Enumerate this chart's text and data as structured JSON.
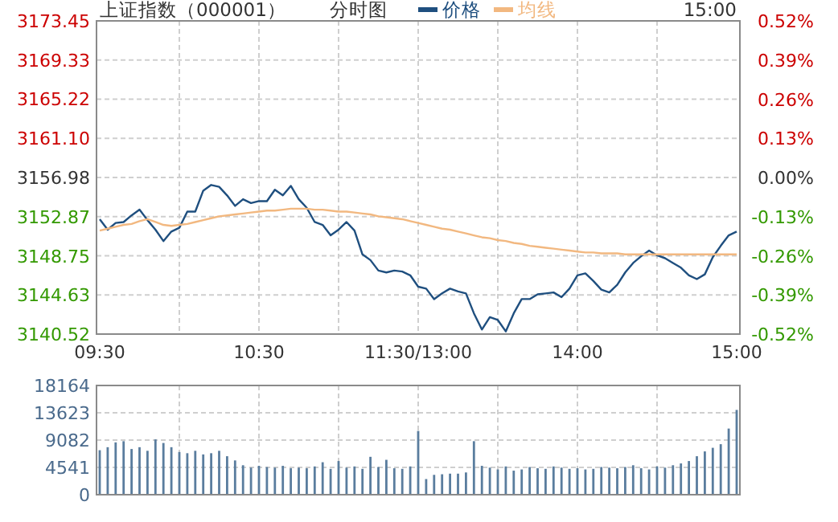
{
  "chart_data": [
    {
      "type": "line",
      "title": "上证指数（000001）",
      "subtitle": "分时图",
      "annotations": [
        "15:00"
      ],
      "legend": "top",
      "grid": true,
      "categories": [
        "09:30",
        null,
        null,
        null,
        null,
        null,
        null,
        null,
        null,
        null,
        null,
        null,
        null,
        null,
        null,
        null,
        null,
        null,
        null,
        null,
        "10:30",
        null,
        null,
        null,
        null,
        null,
        null,
        null,
        null,
        null,
        null,
        null,
        null,
        null,
        null,
        null,
        null,
        null,
        null,
        null,
        "11:30/13:00",
        null,
        null,
        null,
        null,
        null,
        null,
        null,
        null,
        null,
        null,
        null,
        null,
        null,
        null,
        null,
        null,
        null,
        null,
        null,
        "14:00",
        null,
        null,
        null,
        null,
        null,
        null,
        null,
        null,
        null,
        null,
        null,
        null,
        null,
        null,
        null,
        null,
        null,
        null,
        null,
        "15:00"
      ],
      "ylim": [
        3140.52,
        3173.45
      ],
      "yticks": [
        3140.52,
        3144.63,
        3148.75,
        3152.87,
        3156.98,
        {
          "value": 3161.1,
          "label": "3161.10"
        },
        3165.22,
        3169.33,
        3173.45
      ],
      "y2lim": [
        -0.52,
        0.52
      ],
      "y2ticks": [
        {
          "value": -0.52,
          "label": "-0.52%"
        },
        {
          "value": -0.39,
          "label": "-0.39%"
        },
        {
          "value": -0.26,
          "label": "-0.26%"
        },
        {
          "value": -0.13,
          "label": "-0.13%"
        },
        {
          "value": 0,
          "label": "0.00%"
        },
        {
          "value": 0.13,
          "label": "0.13%"
        },
        {
          "value": 0.26,
          "label": "0.26%"
        },
        {
          "value": 0.39,
          "label": "0.39%"
        },
        {
          "value": 0.52,
          "label": "0.52%"
        }
      ],
      "series": [
        {
          "name": "价格",
          "color": "#1f4f7f",
          "values": [
            3152.6,
            3151.5,
            3152.2,
            3152.3,
            3153.0,
            3153.6,
            3152.5,
            3151.5,
            3150.3,
            3151.3,
            3151.7,
            3153.4,
            3153.4,
            3155.6,
            3156.2,
            3156.0,
            3155.1,
            3154.0,
            3154.7,
            3154.3,
            3154.5,
            3154.5,
            3155.7,
            3155.1,
            3156.1,
            3154.7,
            3153.8,
            3152.3,
            3152.0,
            3150.9,
            3151.5,
            3152.3,
            3151.4,
            3148.9,
            3148.3,
            3147.2,
            3147.0,
            3147.2,
            3147.1,
            3146.7,
            3145.5,
            3145.3,
            3144.2,
            3144.8,
            3145.3,
            3145.0,
            3144.8,
            3142.7,
            3141.0,
            3142.3,
            3142.0,
            3140.8,
            3142.7,
            3144.2,
            3144.2,
            3144.7,
            3144.8,
            3144.9,
            3144.4,
            3145.3,
            3146.7,
            3146.9,
            3146.1,
            3145.2,
            3144.9,
            3145.7,
            3147.0,
            3148.0,
            3148.7,
            3149.3,
            3148.8,
            3148.5,
            3148.0,
            3147.5,
            3146.7,
            3146.3,
            3146.8,
            3148.6,
            3149.8,
            3150.9,
            3151.3
          ]
        },
        {
          "name": "均线",
          "color": "#f2b880",
          "values": [
            3151.4,
            3151.6,
            3151.8,
            3152.0,
            3152.1,
            3152.4,
            3152.6,
            3152.3,
            3152.0,
            3151.9,
            3152.0,
            3152.1,
            3152.3,
            3152.5,
            3152.7,
            3152.9,
            3153.0,
            3153.1,
            3153.2,
            3153.3,
            3153.4,
            3153.5,
            3153.5,
            3153.6,
            3153.7,
            3153.7,
            3153.7,
            3153.6,
            3153.6,
            3153.5,
            3153.4,
            3153.4,
            3153.3,
            3153.2,
            3153.1,
            3152.9,
            3152.8,
            3152.7,
            3152.6,
            3152.4,
            3152.2,
            3152.0,
            3151.8,
            3151.6,
            3151.5,
            3151.3,
            3151.1,
            3150.9,
            3150.7,
            3150.6,
            3150.4,
            3150.3,
            3150.1,
            3150.0,
            3149.8,
            3149.7,
            3149.6,
            3149.5,
            3149.4,
            3149.3,
            3149.2,
            3149.1,
            3149.1,
            3149.0,
            3149.0,
            3149.0,
            3148.9,
            3148.9,
            3148.9,
            3148.9,
            3148.9,
            3148.9,
            3148.9,
            3148.9,
            3148.9,
            3148.9,
            3148.9,
            3148.9,
            3148.9,
            3148.9,
            3148.9
          ]
        }
      ]
    },
    {
      "type": "bar",
      "grid": true,
      "tick_labels": "y",
      "categories": [
        null,
        null,
        null,
        null,
        null,
        null,
        null,
        null,
        null,
        null,
        null,
        null,
        null,
        null,
        null,
        null,
        null,
        null,
        null,
        null,
        null,
        null,
        null,
        null,
        null,
        null,
        null,
        null,
        null,
        null,
        null,
        null,
        null,
        null,
        null,
        null,
        null,
        null,
        null,
        null,
        null,
        null,
        null,
        null,
        null,
        null,
        null,
        null,
        null,
        null,
        null,
        null,
        null,
        null,
        null,
        null,
        null,
        null,
        null,
        null,
        null,
        null,
        null,
        null,
        null,
        null,
        null,
        null,
        null,
        null,
        null,
        null,
        null,
        null,
        null,
        null,
        null,
        null,
        null,
        null,
        null
      ],
      "ylim": [
        0,
        18164
      ],
      "yticks": [
        0,
        4541,
        9082,
        13623,
        18164
      ],
      "series": [
        {
          "color": "#5a7d9e",
          "values": [
            7400,
            7900,
            8700,
            8900,
            7600,
            7900,
            7300,
            9200,
            8600,
            7900,
            7100,
            6900,
            7300,
            6700,
            6900,
            7300,
            6400,
            5700,
            4900,
            4500,
            4800,
            4600,
            4500,
            4800,
            4400,
            4500,
            4400,
            4700,
            5400,
            4300,
            5600,
            4500,
            4700,
            4300,
            6300,
            4600,
            5800,
            4400,
            4300,
            4700,
            10600,
            2600,
            3300,
            3400,
            3500,
            3500,
            3700,
            8900,
            4800,
            4500,
            4200,
            4700,
            4000,
            4200,
            4600,
            4400,
            4300,
            4700,
            4500,
            4300,
            4400,
            4200,
            4300,
            4600,
            4500,
            4400,
            4600,
            4900,
            4400,
            4200,
            4700,
            4500,
            4900,
            5200,
            5600,
            6400,
            7200,
            7800,
            8400,
            11000,
            14100
          ]
        }
      ]
    }
  ]
}
